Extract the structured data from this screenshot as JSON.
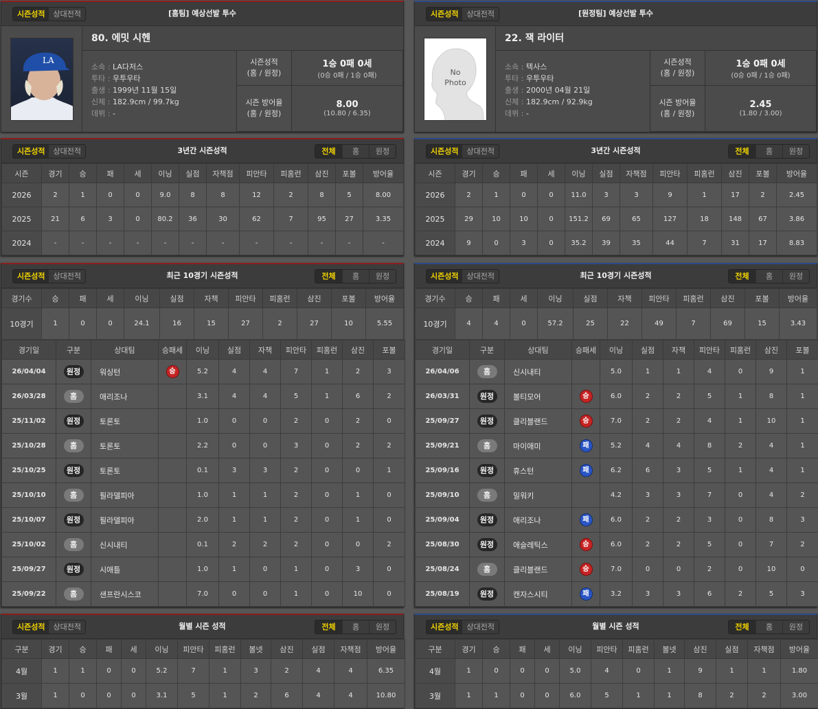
{
  "tabs": {
    "season": "시즌성적",
    "versus": "상대전적"
  },
  "filters": [
    "전체",
    "홈",
    "원정"
  ],
  "colors": {
    "home_accent": "#8e1d1d",
    "away_accent": "#2b4a8c",
    "active_tab": "#f2d400",
    "win": "#c62424",
    "loss": "#2a55c4"
  },
  "home": {
    "header_title": "[홈팀] 예상선발 투수",
    "photo": {
      "type": "player-photo"
    },
    "name": "80. 에밋 시헨",
    "info": [
      {
        "label": "소속",
        "value": "LA다저스"
      },
      {
        "label": "투타",
        "value": "우투우타"
      },
      {
        "label": "출생",
        "value": "1999년 11월 15일"
      },
      {
        "label": "신체",
        "value": "182.9cm / 99.7kg"
      },
      {
        "label": "데뷔",
        "value": "-"
      }
    ],
    "record_label": "시즌성적",
    "record_sub": "(홈 / 원정)",
    "record_value": "1승 0패 0세",
    "record_detail": "(0승 0패 / 1승 0패)",
    "era_label": "시즌 방어율",
    "era_sub": "(홈 / 원정)",
    "era_value": "8.00",
    "era_detail": "(10.80 / 6.35)",
    "three_year": {
      "title": "3년간 시즌성적",
      "columns": [
        "시즌",
        "경기",
        "승",
        "패",
        "세",
        "이닝",
        "실점",
        "자책점",
        "피안타",
        "피홈런",
        "삼진",
        "포볼",
        "방어율"
      ],
      "rows": [
        [
          "2026",
          "2",
          "1",
          "0",
          "0",
          "9.0",
          "8",
          "8",
          "12",
          "2",
          "8",
          "5",
          "8.00"
        ],
        [
          "2025",
          "21",
          "6",
          "3",
          "0",
          "80.2",
          "36",
          "30",
          "62",
          "7",
          "95",
          "27",
          "3.35"
        ],
        [
          "2024",
          "-",
          "-",
          "-",
          "-",
          "-",
          "-",
          "-",
          "-",
          "-",
          "-",
          "-",
          "-"
        ]
      ]
    },
    "recent10": {
      "title": "최근 10경기 시즌성적",
      "summary_columns": [
        "경기수",
        "승",
        "패",
        "세",
        "이닝",
        "실점",
        "자책",
        "피안타",
        "피홈런",
        "삼진",
        "포볼",
        "방어율"
      ],
      "summary_row": [
        "10경기",
        "1",
        "0",
        "0",
        "24.1",
        "16",
        "15",
        "27",
        "2",
        "27",
        "10",
        "5.55"
      ],
      "game_columns": [
        "경기일",
        "구분",
        "상대팀",
        "승패세",
        "이닝",
        "실점",
        "자책",
        "피안타",
        "피홈런",
        "삼진",
        "포볼"
      ],
      "games": [
        [
          "26/04/04",
          "원정",
          "워싱턴",
          "승",
          "5.2",
          "4",
          "4",
          "7",
          "1",
          "2",
          "3"
        ],
        [
          "26/03/28",
          "홈",
          "애리조나",
          "",
          "3.1",
          "4",
          "4",
          "5",
          "1",
          "6",
          "2"
        ],
        [
          "25/11/02",
          "원정",
          "토론토",
          "",
          "1.0",
          "0",
          "0",
          "2",
          "0",
          "2",
          "0"
        ],
        [
          "25/10/28",
          "홈",
          "토론토",
          "",
          "2.2",
          "0",
          "0",
          "3",
          "0",
          "2",
          "2"
        ],
        [
          "25/10/25",
          "원정",
          "토론토",
          "",
          "0.1",
          "3",
          "3",
          "2",
          "0",
          "0",
          "1"
        ],
        [
          "25/10/10",
          "홈",
          "필라델피아",
          "",
          "1.0",
          "1",
          "1",
          "2",
          "0",
          "1",
          "0"
        ],
        [
          "25/10/07",
          "원정",
          "필라델피아",
          "",
          "2.0",
          "1",
          "1",
          "2",
          "0",
          "1",
          "0"
        ],
        [
          "25/10/02",
          "홈",
          "신시내티",
          "",
          "0.1",
          "2",
          "2",
          "2",
          "0",
          "0",
          "2"
        ],
        [
          "25/09/27",
          "원정",
          "시애틀",
          "",
          "1.0",
          "1",
          "0",
          "1",
          "0",
          "3",
          "0"
        ],
        [
          "25/09/22",
          "홈",
          "샌프란시스코",
          "",
          "7.0",
          "0",
          "0",
          "1",
          "0",
          "10",
          "0"
        ]
      ]
    },
    "monthly": {
      "title": "월별 시즌 성적",
      "columns": [
        "구분",
        "경기",
        "승",
        "패",
        "세",
        "이닝",
        "피안타",
        "피홈런",
        "볼넷",
        "삼진",
        "실점",
        "자책점",
        "방어율"
      ],
      "rows": [
        [
          "4월",
          "1",
          "1",
          "0",
          "0",
          "5.2",
          "7",
          "1",
          "3",
          "2",
          "4",
          "4",
          "6.35"
        ],
        [
          "3월",
          "1",
          "0",
          "0",
          "0",
          "3.1",
          "5",
          "1",
          "2",
          "6",
          "4",
          "4",
          "10.80"
        ]
      ]
    }
  },
  "away": {
    "header_title": "[원정팀] 예상선발 투수",
    "photo": {
      "type": "no-photo",
      "text_line1": "No",
      "text_line2": "Photo"
    },
    "name": "22. 잭 라이터",
    "info": [
      {
        "label": "소속",
        "value": "텍사스"
      },
      {
        "label": "투타",
        "value": "우투우타"
      },
      {
        "label": "출생",
        "value": "2000년 04월 21일"
      },
      {
        "label": "신체",
        "value": "182.9cm / 92.9kg"
      },
      {
        "label": "데뷔",
        "value": "-"
      }
    ],
    "record_label": "시즌성적",
    "record_sub": "(홈 / 원정)",
    "record_value": "1승 0패 0세",
    "record_detail": "(0승 0패 / 1승 0패)",
    "era_label": "시즌 방어율",
    "era_sub": "(홈 / 원정)",
    "era_value": "2.45",
    "era_detail": "(1.80 / 3.00)",
    "three_year": {
      "title": "3년간 시즌성적",
      "columns": [
        "시즌",
        "경기",
        "승",
        "패",
        "세",
        "이닝",
        "실점",
        "자책점",
        "피안타",
        "피홈런",
        "삼진",
        "포볼",
        "방어율"
      ],
      "rows": [
        [
          "2026",
          "2",
          "1",
          "0",
          "0",
          "11.0",
          "3",
          "3",
          "9",
          "1",
          "17",
          "2",
          "2.45"
        ],
        [
          "2025",
          "29",
          "10",
          "10",
          "0",
          "151.2",
          "69",
          "65",
          "127",
          "18",
          "148",
          "67",
          "3.86"
        ],
        [
          "2024",
          "9",
          "0",
          "3",
          "0",
          "35.2",
          "39",
          "35",
          "44",
          "7",
          "31",
          "17",
          "8.83"
        ]
      ]
    },
    "recent10": {
      "title": "최근 10경기 시즌성적",
      "summary_columns": [
        "경기수",
        "승",
        "패",
        "세",
        "이닝",
        "실점",
        "자책",
        "피안타",
        "피홈런",
        "삼진",
        "포볼",
        "방어율"
      ],
      "summary_row": [
        "10경기",
        "4",
        "4",
        "0",
        "57.2",
        "25",
        "22",
        "49",
        "7",
        "69",
        "15",
        "3.43"
      ],
      "game_columns": [
        "경기일",
        "구분",
        "상대팀",
        "승패세",
        "이닝",
        "실점",
        "자책",
        "피안타",
        "피홈런",
        "삼진",
        "포볼"
      ],
      "games": [
        [
          "26/04/06",
          "홈",
          "신시내티",
          "",
          "5.0",
          "1",
          "1",
          "4",
          "0",
          "9",
          "1"
        ],
        [
          "26/03/31",
          "원정",
          "볼티모어",
          "승",
          "6.0",
          "2",
          "2",
          "5",
          "1",
          "8",
          "1"
        ],
        [
          "25/09/27",
          "원정",
          "클리블랜드",
          "승",
          "7.0",
          "2",
          "2",
          "4",
          "1",
          "10",
          "1"
        ],
        [
          "25/09/21",
          "홈",
          "마이애미",
          "패",
          "5.2",
          "4",
          "4",
          "8",
          "2",
          "4",
          "1"
        ],
        [
          "25/09/16",
          "원정",
          "휴스턴",
          "패",
          "6.2",
          "6",
          "3",
          "5",
          "1",
          "4",
          "1"
        ],
        [
          "25/09/10",
          "홈",
          "밀워키",
          "",
          "4.2",
          "3",
          "3",
          "7",
          "0",
          "4",
          "2"
        ],
        [
          "25/09/04",
          "원정",
          "애리조나",
          "패",
          "6.0",
          "2",
          "2",
          "3",
          "0",
          "8",
          "3"
        ],
        [
          "25/08/30",
          "원정",
          "애슬레틱스",
          "승",
          "6.0",
          "2",
          "2",
          "5",
          "0",
          "7",
          "2"
        ],
        [
          "25/08/24",
          "홈",
          "클리블랜드",
          "승",
          "7.0",
          "0",
          "0",
          "2",
          "0",
          "10",
          "0"
        ],
        [
          "25/08/19",
          "원정",
          "캔자스시티",
          "패",
          "3.2",
          "3",
          "3",
          "6",
          "2",
          "5",
          "3"
        ]
      ]
    },
    "monthly": {
      "title": "월별 시즌 성적",
      "columns": [
        "구분",
        "경기",
        "승",
        "패",
        "세",
        "이닝",
        "피안타",
        "피홈런",
        "볼넷",
        "삼진",
        "실점",
        "자책점",
        "방어율"
      ],
      "rows": [
        [
          "4월",
          "1",
          "0",
          "0",
          "0",
          "5.0",
          "4",
          "0",
          "1",
          "9",
          "1",
          "1",
          "1.80"
        ],
        [
          "3월",
          "1",
          "1",
          "0",
          "0",
          "6.0",
          "5",
          "1",
          "1",
          "8",
          "2",
          "2",
          "3.00"
        ]
      ]
    }
  }
}
